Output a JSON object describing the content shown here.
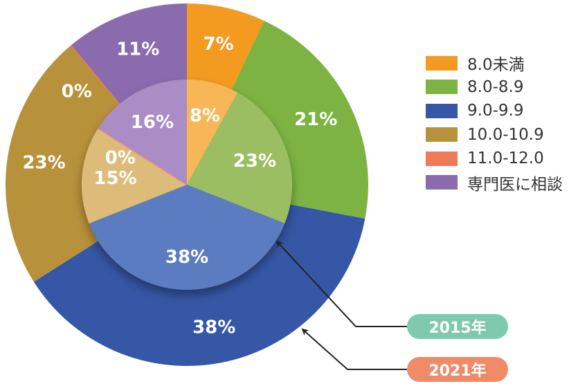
{
  "chart_data": {
    "type": "pie",
    "categories": [
      "8.0未満",
      "8.0-8.9",
      "9.0-9.9",
      "10.0-10.9",
      "11.0-12.0",
      "専門医に相談"
    ],
    "series": [
      {
        "name": "2021年",
        "values": [
          7,
          21,
          38,
          23,
          0,
          11
        ],
        "labels": [
          "7%",
          "21%",
          "38%",
          "23%",
          "0%",
          "11%"
        ]
      },
      {
        "name": "2015年",
        "values": [
          8,
          23,
          38,
          15,
          0,
          16
        ],
        "labels": [
          "8%",
          "23%",
          "38%",
          "15%",
          "0%",
          "16%"
        ]
      }
    ],
    "colors": {
      "outer": [
        "#F39A21",
        "#7CB342",
        "#3557A5",
        "#B8913B",
        "#EE7A58",
        "#8A6CAE"
      ],
      "inner": [
        "#F8B757",
        "#9BBE62",
        "#5C7CC1",
        "#DDBC7A",
        "#F0987C",
        "#A98DC4"
      ],
      "badge_2015": "#7FC9AE",
      "badge_2021": "#F08B6A"
    },
    "legend": {
      "placement": "right",
      "items": [
        "8.0未満",
        "8.0-8.9",
        "9.0-9.9",
        "10.0-10.9",
        "11.0-12.0",
        "専門医に相談"
      ]
    },
    "annotations": [
      "2015年",
      "2021年"
    ]
  }
}
